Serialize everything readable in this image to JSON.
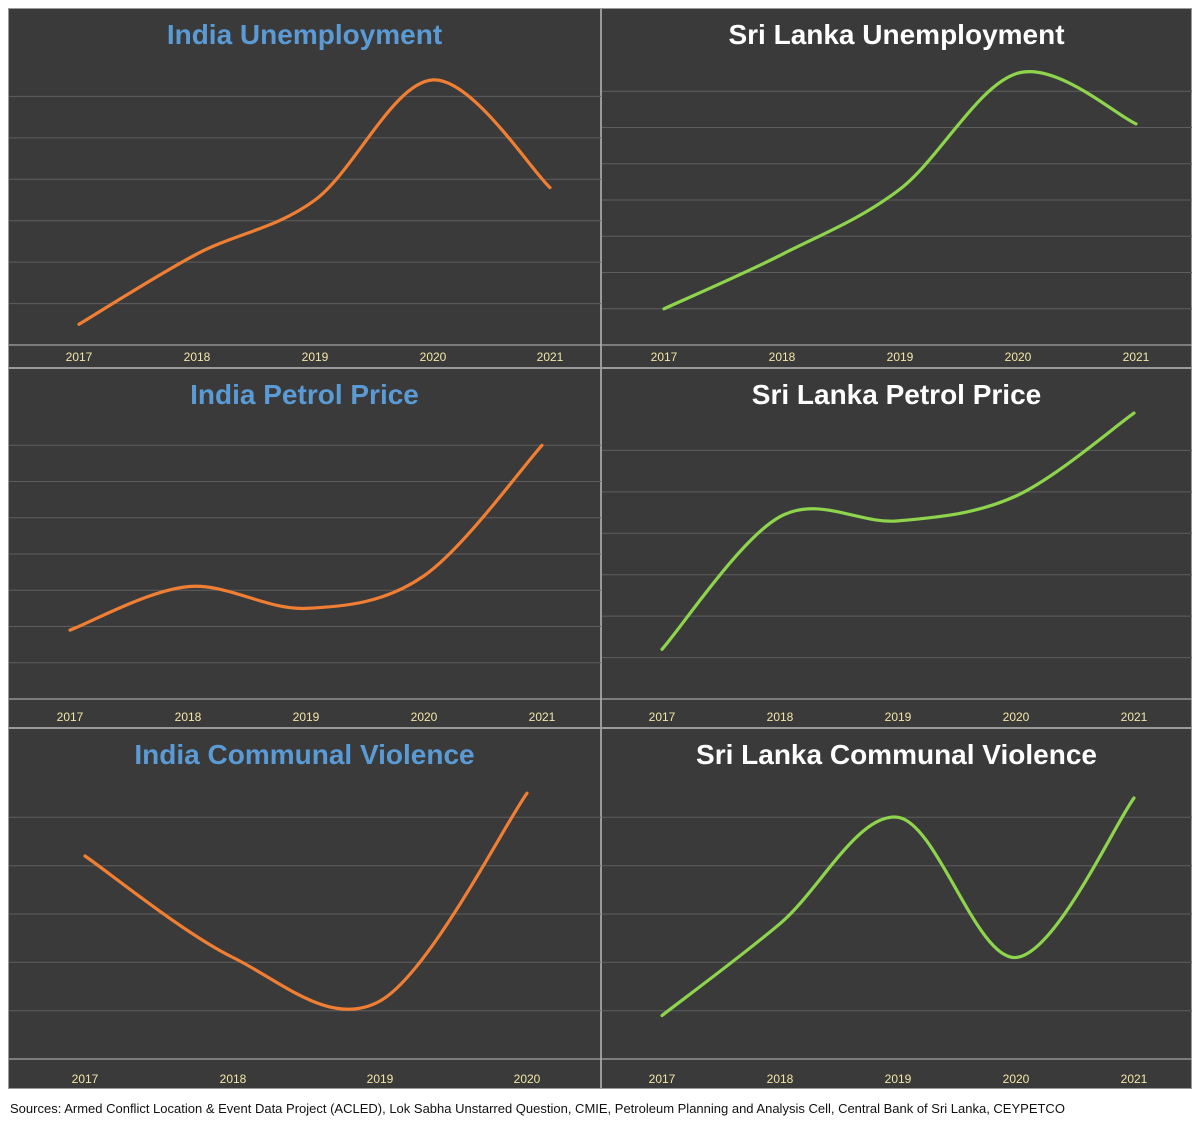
{
  "colors": {
    "india_line": "#f07f33",
    "srilanka_line": "#8ed44c",
    "india_title": "#5b9bd5",
    "srilanka_title": "#ffffff"
  },
  "sources": "Sources: Armed Conflict Location & Event Data Project (ACLED), Lok Sabha Unstarred Question, CMIE, Petroleum Planning and Analysis Cell, Central Bank of Sri Lanka, CEYPETCO",
  "chart_data": [
    {
      "id": "india-unemployment",
      "type": "line",
      "title": "India Unemployment",
      "categories": [
        "2017",
        "2018",
        "2019",
        "2020",
        "2021"
      ],
      "values": [
        0.5,
        2.2,
        3.5,
        6.4,
        3.8
      ],
      "ylim": [
        0,
        7
      ],
      "gridlines": 7,
      "smooth": true,
      "color": "india_line",
      "title_color": "india_title"
    },
    {
      "id": "srilanka-unemployment",
      "type": "line",
      "title": "Sri Lanka Unemployment",
      "categories": [
        "2017",
        "2018",
        "2019",
        "2020",
        "2021"
      ],
      "values": [
        1.0,
        2.5,
        4.3,
        7.5,
        6.1
      ],
      "ylim": [
        0,
        8
      ],
      "gridlines": 8,
      "smooth": true,
      "color": "srilanka_line",
      "title_color": "srilanka_title"
    },
    {
      "id": "india-petrol",
      "type": "line",
      "title": "India Petrol Price",
      "categories": [
        "2017",
        "2018",
        "2019",
        "2020",
        "2021"
      ],
      "values": [
        1.9,
        3.1,
        2.5,
        3.4,
        7.0
      ],
      "ylim": [
        0,
        8
      ],
      "gridlines": 8,
      "smooth": true,
      "color": "india_line",
      "title_color": "india_title"
    },
    {
      "id": "srilanka-petrol",
      "type": "line",
      "title": "Sri Lanka Petrol Price",
      "categories": [
        "2017",
        "2018",
        "2019",
        "2020",
        "2021"
      ],
      "values": [
        1.2,
        4.4,
        4.3,
        4.9,
        6.9
      ],
      "ylim": [
        0,
        7
      ],
      "gridlines": 7,
      "smooth": true,
      "color": "srilanka_line",
      "title_color": "srilanka_title"
    },
    {
      "id": "india-communal",
      "type": "line",
      "title": "India Communal Violence",
      "categories": [
        "2017",
        "2018",
        "2019",
        "2020"
      ],
      "values": [
        4.2,
        2.1,
        1.2,
        5.5
      ],
      "ylim": [
        0,
        6
      ],
      "gridlines": 6,
      "smooth": true,
      "color": "india_line",
      "title_color": "india_title"
    },
    {
      "id": "srilanka-communal",
      "type": "line",
      "title": "Sri Lanka Communal Violence",
      "categories": [
        "2017",
        "2018",
        "2019",
        "2020",
        "2021"
      ],
      "values": [
        0.9,
        2.8,
        5.0,
        2.1,
        5.4
      ],
      "ylim": [
        0,
        6
      ],
      "gridlines": 6,
      "smooth": true,
      "color": "srilanka_line",
      "title_color": "srilanka_title"
    }
  ]
}
